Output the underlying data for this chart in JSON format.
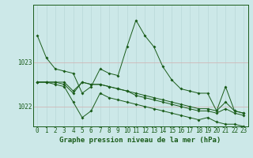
{
  "background_color": "#cce8e8",
  "grid_v_color": "#b8d8d8",
  "grid_h_color": "#d0b8b8",
  "line_color": "#1a5c1a",
  "xlabel": "Graphe pression niveau de la mer (hPa)",
  "xlabel_fontsize": 6.5,
  "tick_label_fontsize": 5.5,
  "ytick_labels": [
    "1022",
    "1023"
  ],
  "ytick_values": [
    1022.0,
    1023.0
  ],
  "ylim": [
    1021.55,
    1024.3
  ],
  "xlim": [
    -0.5,
    23.5
  ],
  "series": [
    [
      1023.6,
      1023.1,
      1022.85,
      1022.8,
      1022.75,
      1022.3,
      1022.45,
      1022.85,
      1022.75,
      1022.7,
      1023.35,
      1023.95,
      1023.6,
      1023.35,
      1022.9,
      1022.6,
      1022.4,
      1022.35,
      1022.3,
      1022.3,
      1021.9,
      1022.45,
      1021.9,
      1021.85
    ],
    [
      1022.55,
      1022.55,
      1022.55,
      1022.55,
      1022.35,
      1022.55,
      1022.5,
      1022.5,
      1022.45,
      1022.4,
      1022.35,
      1022.3,
      1022.25,
      1022.2,
      1022.15,
      1022.1,
      1022.05,
      1022.0,
      1021.95,
      1021.95,
      1021.9,
      1022.1,
      1021.9,
      1021.85
    ],
    [
      1022.55,
      1022.55,
      1022.55,
      1022.5,
      1022.3,
      1022.55,
      1022.5,
      1022.5,
      1022.45,
      1022.4,
      1022.35,
      1022.25,
      1022.2,
      1022.15,
      1022.1,
      1022.05,
      1022.0,
      1021.95,
      1021.9,
      1021.9,
      1021.85,
      1021.95,
      1021.85,
      1021.8
    ],
    [
      1022.55,
      1022.55,
      1022.5,
      1022.45,
      1022.1,
      1021.75,
      1021.9,
      1022.3,
      1022.2,
      1022.15,
      1022.1,
      1022.05,
      1022.0,
      1021.95,
      1021.9,
      1021.85,
      1021.8,
      1021.75,
      1021.7,
      1021.75,
      1021.65,
      1021.6,
      1021.6,
      1021.55
    ]
  ]
}
